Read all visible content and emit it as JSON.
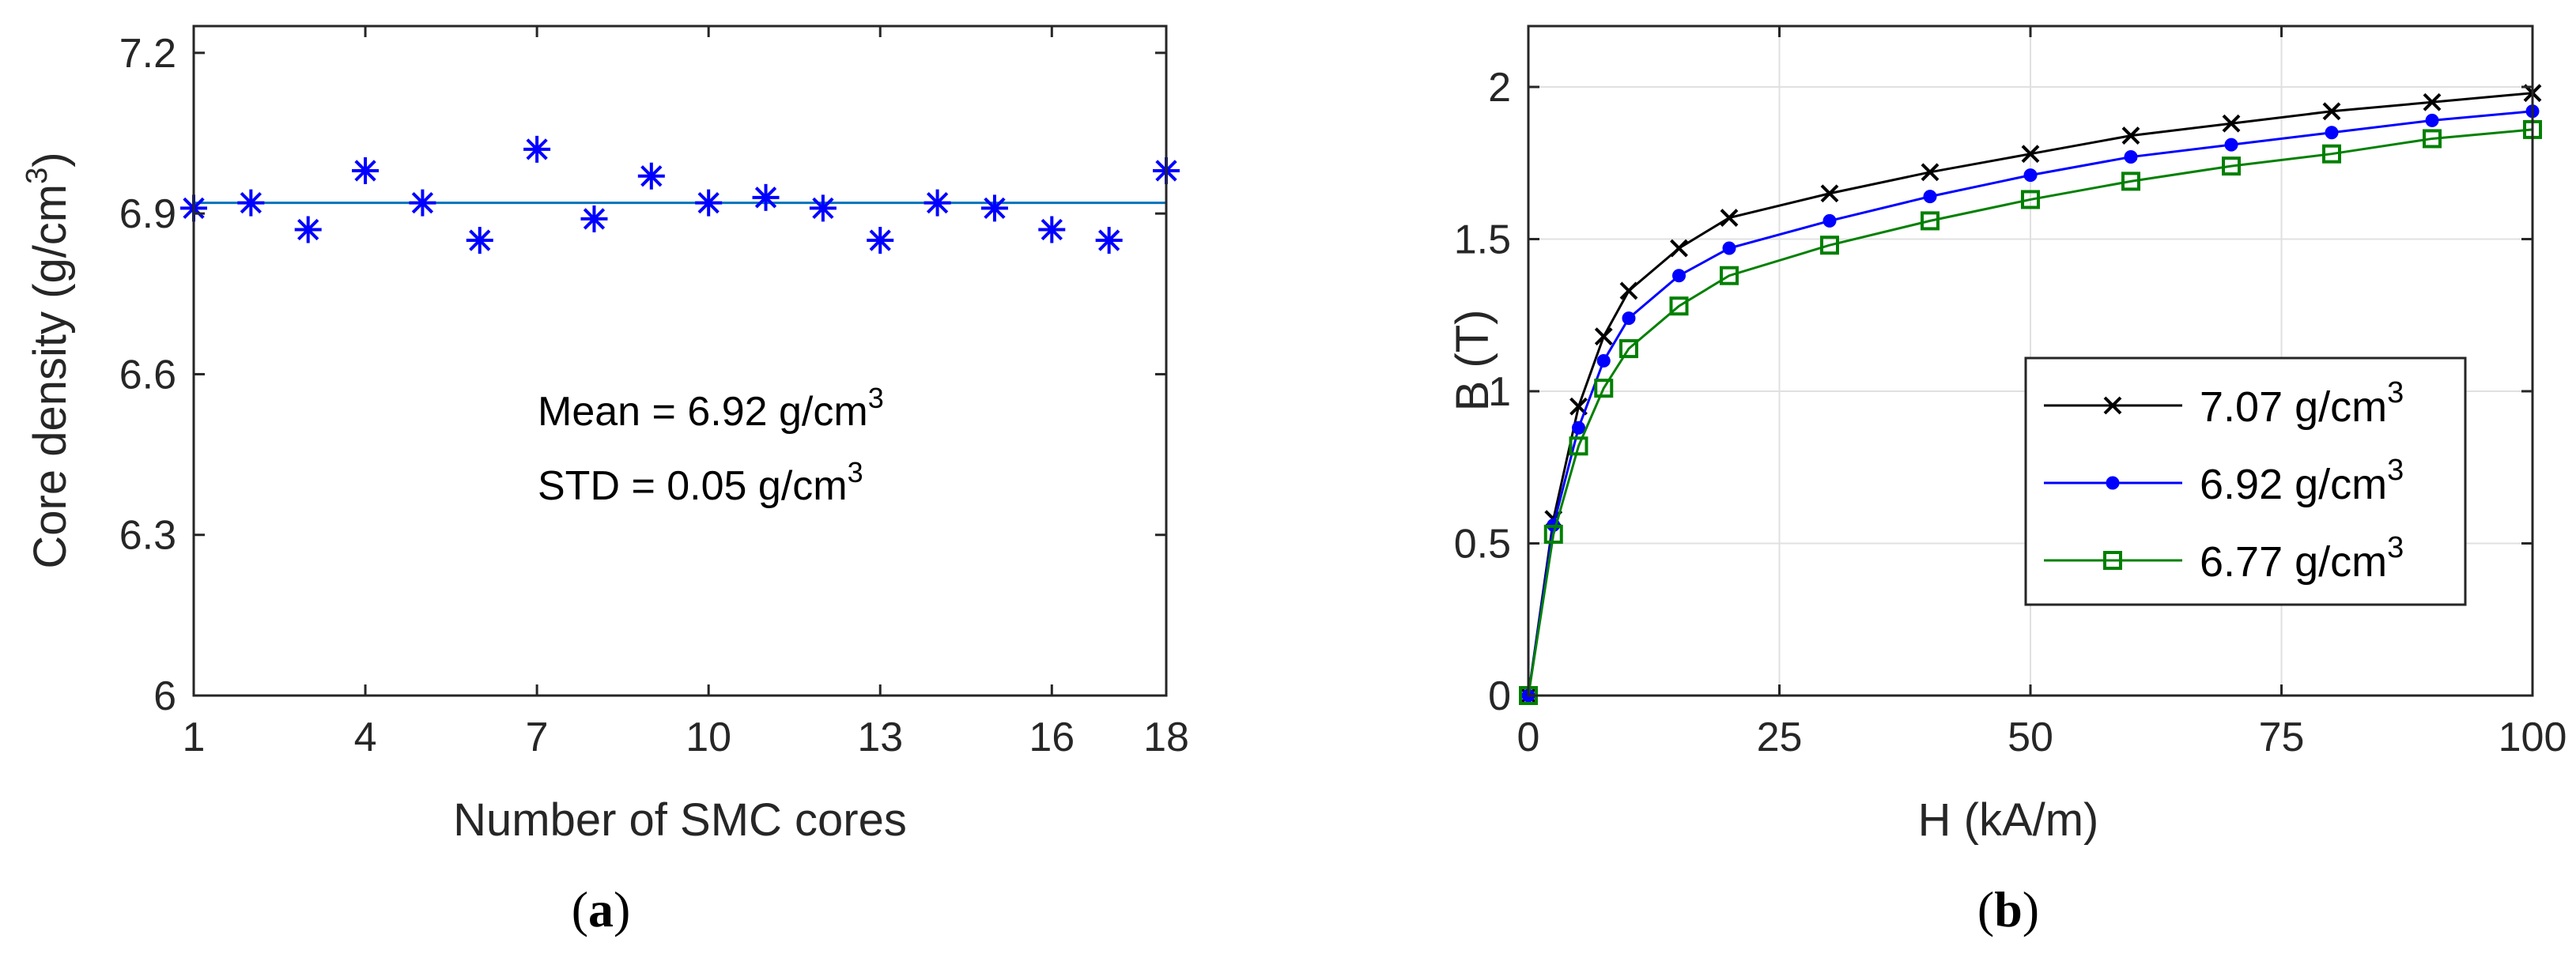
{
  "chart_data": [
    {
      "type": "scatter",
      "panel_label": "a",
      "title": "",
      "xlabel": "Number of SMC cores",
      "ylabel": "Core density",
      "ylabel_unit": "(g/cm",
      "ylabel_sup": "3",
      "ylabel_close": ")",
      "xlim": [
        1,
        18
      ],
      "ylim": [
        6.0,
        7.25
      ],
      "xticks": [
        1,
        4,
        7,
        10,
        13,
        16,
        18
      ],
      "yticks": [
        6.0,
        6.3,
        6.6,
        6.9,
        7.2
      ],
      "ytick_labels": [
        "6",
        "6.3",
        "6.6",
        "6.9",
        "7.2"
      ],
      "grid": false,
      "series": [
        {
          "name": "Core density",
          "marker": "asterisk",
          "color": "#0000ff",
          "x": [
            1,
            2,
            3,
            4,
            5,
            6,
            7,
            8,
            9,
            10,
            11,
            12,
            13,
            14,
            15,
            16,
            17,
            18
          ],
          "values": [
            6.91,
            6.92,
            6.87,
            6.98,
            6.92,
            6.85,
            7.02,
            6.89,
            6.97,
            6.92,
            6.93,
            6.91,
            6.85,
            6.92,
            6.91,
            6.87,
            6.85,
            6.98
          ]
        }
      ],
      "mean_line": {
        "value": 6.92,
        "color": "#0072bd"
      },
      "annotations": [
        {
          "text": "Mean = 6.92 g/cm",
          "sup": "3"
        },
        {
          "text": "STD = 0.05 g/cm",
          "sup": "3"
        }
      ]
    },
    {
      "type": "line",
      "panel_label": "b",
      "title": "",
      "xlabel": "H (kA/m)",
      "ylabel": "B (T)",
      "xlim": [
        0,
        100
      ],
      "ylim": [
        0,
        2.2
      ],
      "xticks": [
        0,
        25,
        50,
        75,
        100
      ],
      "yticks": [
        0,
        0.5,
        1,
        1.5,
        2
      ],
      "ytick_labels": [
        "0",
        "0.5",
        "1",
        "1.5",
        "2"
      ],
      "grid": true,
      "legend_position": "right-center",
      "x": [
        0,
        2.5,
        5,
        7.5,
        10,
        15,
        20,
        30,
        40,
        50,
        60,
        70,
        80,
        90,
        100
      ],
      "series": [
        {
          "name": "7.07 g/cm",
          "sup": "3",
          "color": "#000000",
          "marker": "x",
          "values": [
            0,
            0.58,
            0.95,
            1.18,
            1.33,
            1.47,
            1.57,
            1.65,
            1.72,
            1.78,
            1.84,
            1.88,
            1.92,
            1.95,
            1.98
          ]
        },
        {
          "name": "6.92 g/cm",
          "sup": "3",
          "color": "#0000ff",
          "marker": "dot",
          "values": [
            0,
            0.56,
            0.88,
            1.1,
            1.24,
            1.38,
            1.47,
            1.56,
            1.64,
            1.71,
            1.77,
            1.81,
            1.85,
            1.89,
            1.92
          ]
        },
        {
          "name": "6.77 g/cm",
          "sup": "3",
          "color": "#008000",
          "marker": "square",
          "values": [
            0,
            0.53,
            0.82,
            1.01,
            1.14,
            1.28,
            1.38,
            1.48,
            1.56,
            1.63,
            1.69,
            1.74,
            1.78,
            1.83,
            1.86
          ]
        }
      ]
    }
  ]
}
